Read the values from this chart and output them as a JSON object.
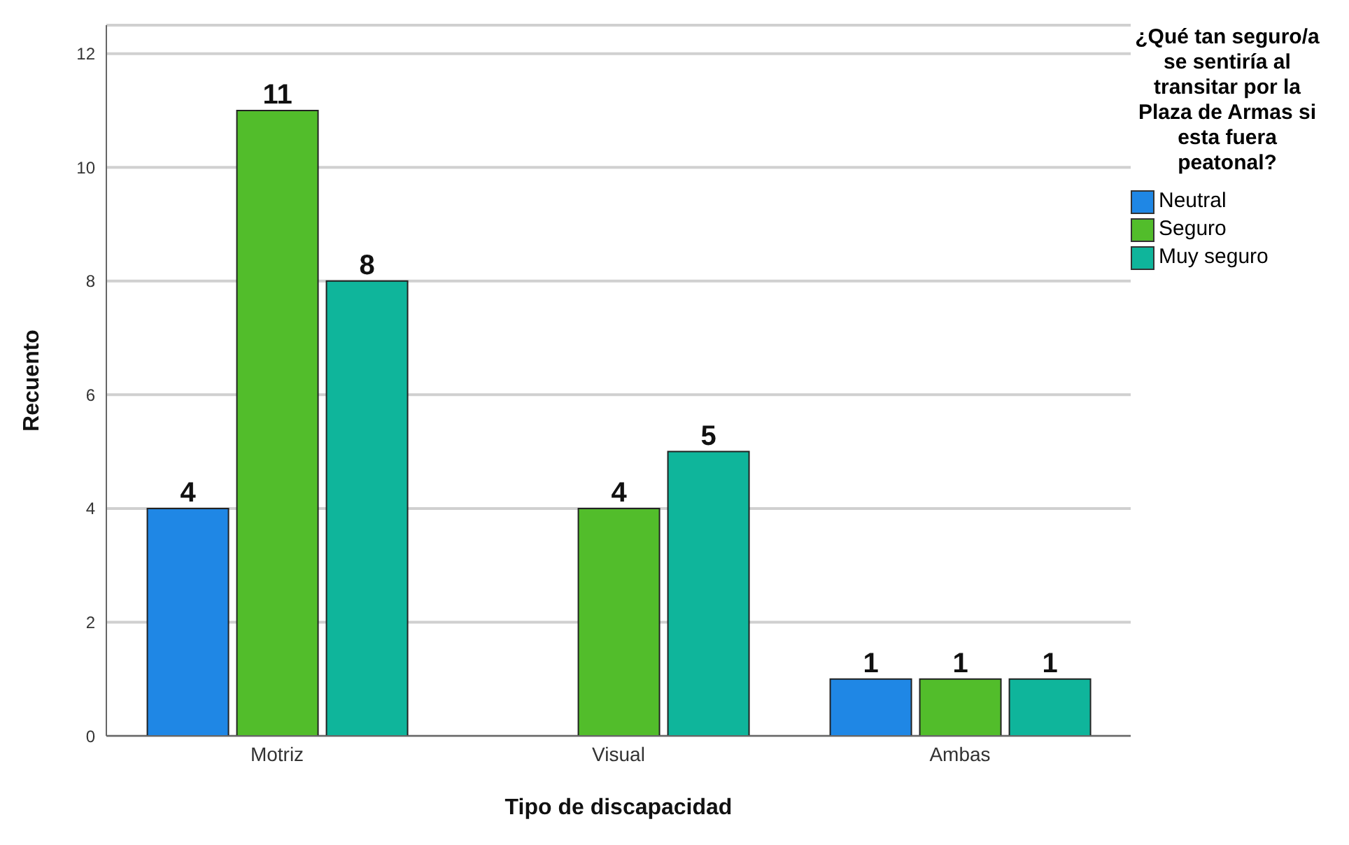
{
  "chart_data": {
    "type": "bar",
    "xlabel": "Tipo de discapacidad",
    "ylabel": "Recuento",
    "legend_title": "¿Qué tan seguro/a se sentiría al transitar por la Plaza de Armas si esta fuera peatonal?",
    "categories": [
      "Motriz",
      "Visual",
      "Ambas"
    ],
    "series": [
      {
        "name": "Neutral",
        "color": "#1f87e5",
        "values": [
          4,
          null,
          1
        ]
      },
      {
        "name": "Seguro",
        "color": "#52bd2b",
        "values": [
          11,
          4,
          1
        ]
      },
      {
        "name": "Muy seguro",
        "color": "#0fb59b",
        "values": [
          8,
          5,
          1
        ]
      }
    ],
    "ylim": [
      0,
      12.5
    ],
    "yticks": [
      0,
      2,
      4,
      6,
      8,
      10,
      12
    ],
    "grid": "y",
    "legend": "top right",
    "data_labels": true
  }
}
